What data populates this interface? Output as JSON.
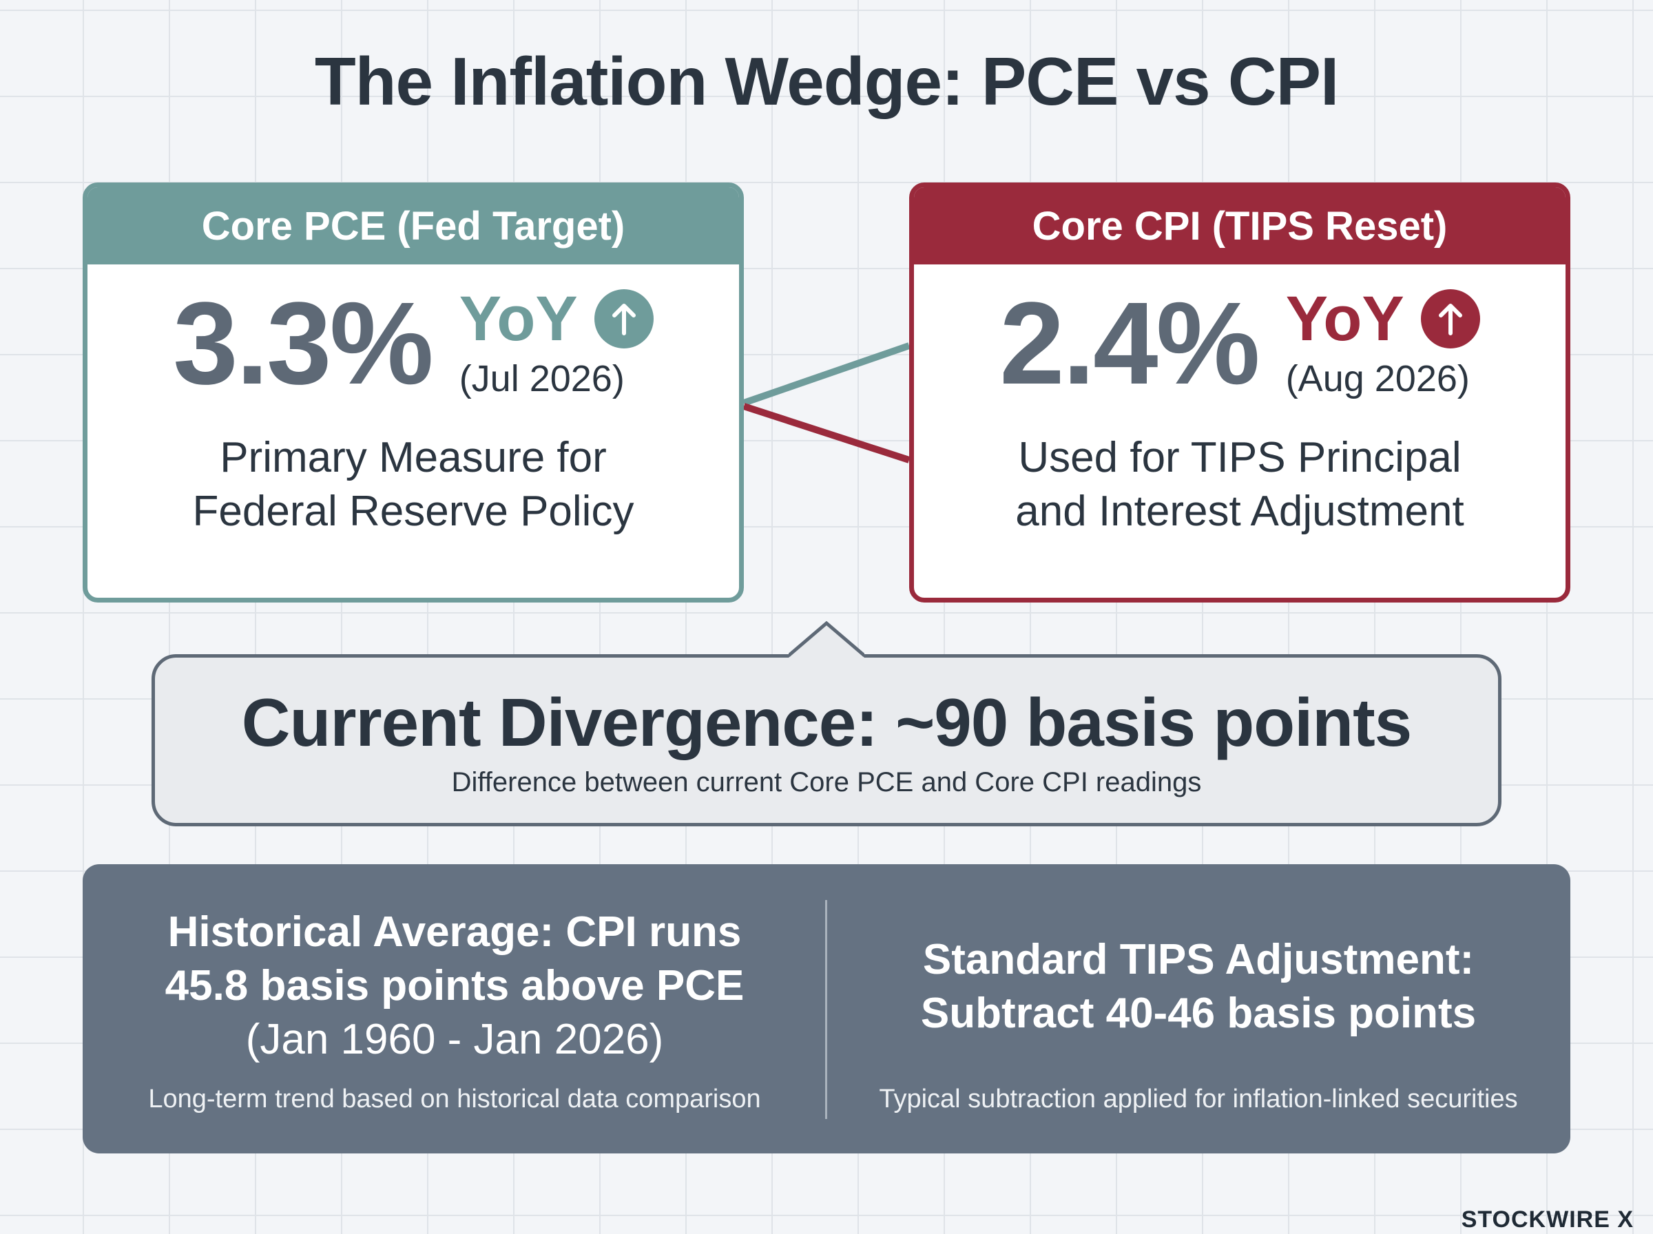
{
  "title": "The Inflation Wedge: PCE vs CPI",
  "cards": {
    "pce": {
      "header": "Core PCE (Fed Target)",
      "value": "3.3%",
      "yoy": "YoY",
      "period": "(Jul 2026)",
      "description_line1": "Primary Measure for",
      "description_line2": "Federal Reserve Policy",
      "trend": "up",
      "trend_icon": "arrow-up-icon",
      "accent_color": "#6f9c9b"
    },
    "cpi": {
      "header": "Core CPI (TIPS Reset)",
      "value": "2.4%",
      "yoy": "YoY",
      "period": "(Aug 2026)",
      "description_line1": "Used for TIPS Principal",
      "description_line2": "and Interest Adjustment",
      "trend": "up",
      "trend_icon": "arrow-up-icon",
      "accent_color": "#9a2a3c"
    }
  },
  "divergence": {
    "headline": "Current Divergence: ~90 basis points",
    "subtitle": "Difference between current Core PCE and Core CPI readings"
  },
  "bottom": {
    "left": {
      "line1": "Historical Average: CPI runs",
      "line2": "45.8 basis points above PCE",
      "range": "(Jan 1960 - Jan 2026)",
      "note": "Long-term trend based on historical data comparison"
    },
    "right": {
      "line1": "Standard TIPS Adjustment:",
      "line2": "Subtract 40-46 basis points",
      "note": "Typical subtraction applied for inflation-linked securities"
    }
  },
  "brand": "STOCKWIRE X"
}
